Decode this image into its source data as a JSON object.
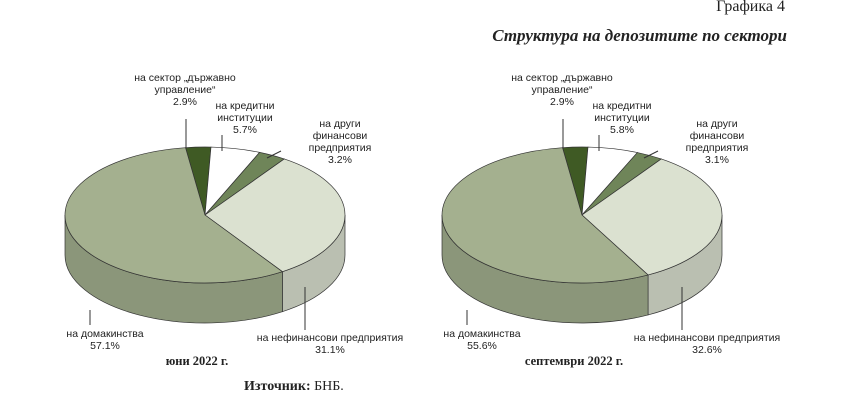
{
  "header": {
    "figure": "Графика 4",
    "title": "Структура на депозитите по сектори"
  },
  "chart_data": [
    {
      "type": "pie",
      "caption": "юни 2022 г.",
      "categories": [
        "на сектор „държавно управление“",
        "на кредитни институции",
        "на други финансови предприятия",
        "на нефинансови предприятия",
        "на домакинства"
      ],
      "values": [
        2.9,
        5.7,
        3.2,
        31.1,
        57.1
      ],
      "value_labels": [
        "2.9%",
        "5.7%",
        "3.2%",
        "31.1%",
        "57.1%"
      ],
      "colors": [
        "#3f5a24",
        "#ffffff",
        "#6f8559",
        "#dbe1d0",
        "#a4b08f"
      ]
    },
    {
      "type": "pie",
      "caption": "септември 2022 г.",
      "categories": [
        "на сектор „държавно управление“",
        "на кредитни институции",
        "на други финансови предприятия",
        "на нефинансови предприятия",
        "на домакинства"
      ],
      "values": [
        2.9,
        5.8,
        3.1,
        32.6,
        55.6
      ],
      "value_labels": [
        "2.9%",
        "5.8%",
        "3.1%",
        "32.6%",
        "55.6%"
      ],
      "colors": [
        "#3f5a24",
        "#ffffff",
        "#6f8559",
        "#dbe1d0",
        "#a4b08f"
      ]
    }
  ],
  "source": {
    "label": "Източник:",
    "text": "БНБ."
  }
}
